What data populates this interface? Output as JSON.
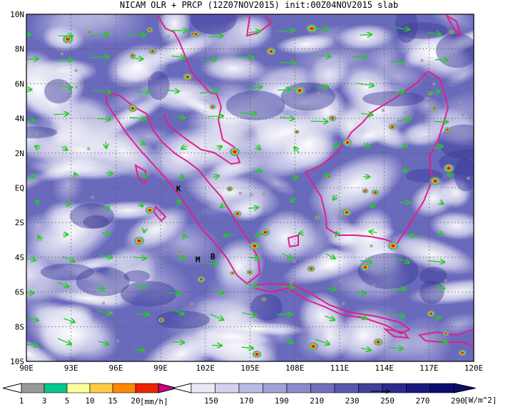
{
  "title": "NICAM OLR + PRCP (12Z07NOV2015) init:00Z04NOV2015 slab",
  "map": {
    "lon_range": [
      90,
      120
    ],
    "lat_range": [
      -10,
      10
    ],
    "lon_ticks": [
      "90E",
      "93E",
      "96E",
      "99E",
      "102E",
      "105E",
      "108E",
      "111E",
      "114E",
      "117E",
      "120E"
    ],
    "lat_ticks": [
      "10N",
      "8N",
      "6N",
      "4N",
      "2N",
      "EQ",
      "2S",
      "4S",
      "6S",
      "8S",
      "10S"
    ],
    "place_labels": [
      {
        "text": "K",
        "lon": 100.2,
        "lat": -0.2
      },
      {
        "text": "M",
        "lon": 101.5,
        "lat": -4.3
      },
      {
        "text": "B",
        "lon": 102.5,
        "lat": -4.1
      }
    ],
    "colors": {
      "coast": "#e0208a",
      "wind": "#22cc22",
      "olr_dark": "#1a1a8c",
      "olr_light": "#e8e8f6"
    }
  },
  "prcp_colorbar": {
    "labels": [
      "1",
      "3",
      "5",
      "10",
      "15",
      "20"
    ],
    "unit": "[mm/h]",
    "colors": [
      "#999999",
      "#00c78c",
      "#ffff99",
      "#ffcc44",
      "#ff8800",
      "#ee2200",
      "#cc0080"
    ]
  },
  "olr_colorbar": {
    "labels": [
      "150",
      "170",
      "190",
      "210",
      "230",
      "250",
      "270",
      "290"
    ],
    "unit": "[W/m^2]",
    "colors": [
      "#ffffff",
      "#e8e8f6",
      "#d2d2ee",
      "#babae4",
      "#a2a2d8",
      "#8a8acc",
      "#7070bc",
      "#5858ac",
      "#40409c",
      "#2a2a90",
      "#181880",
      "#0c0c70"
    ]
  }
}
